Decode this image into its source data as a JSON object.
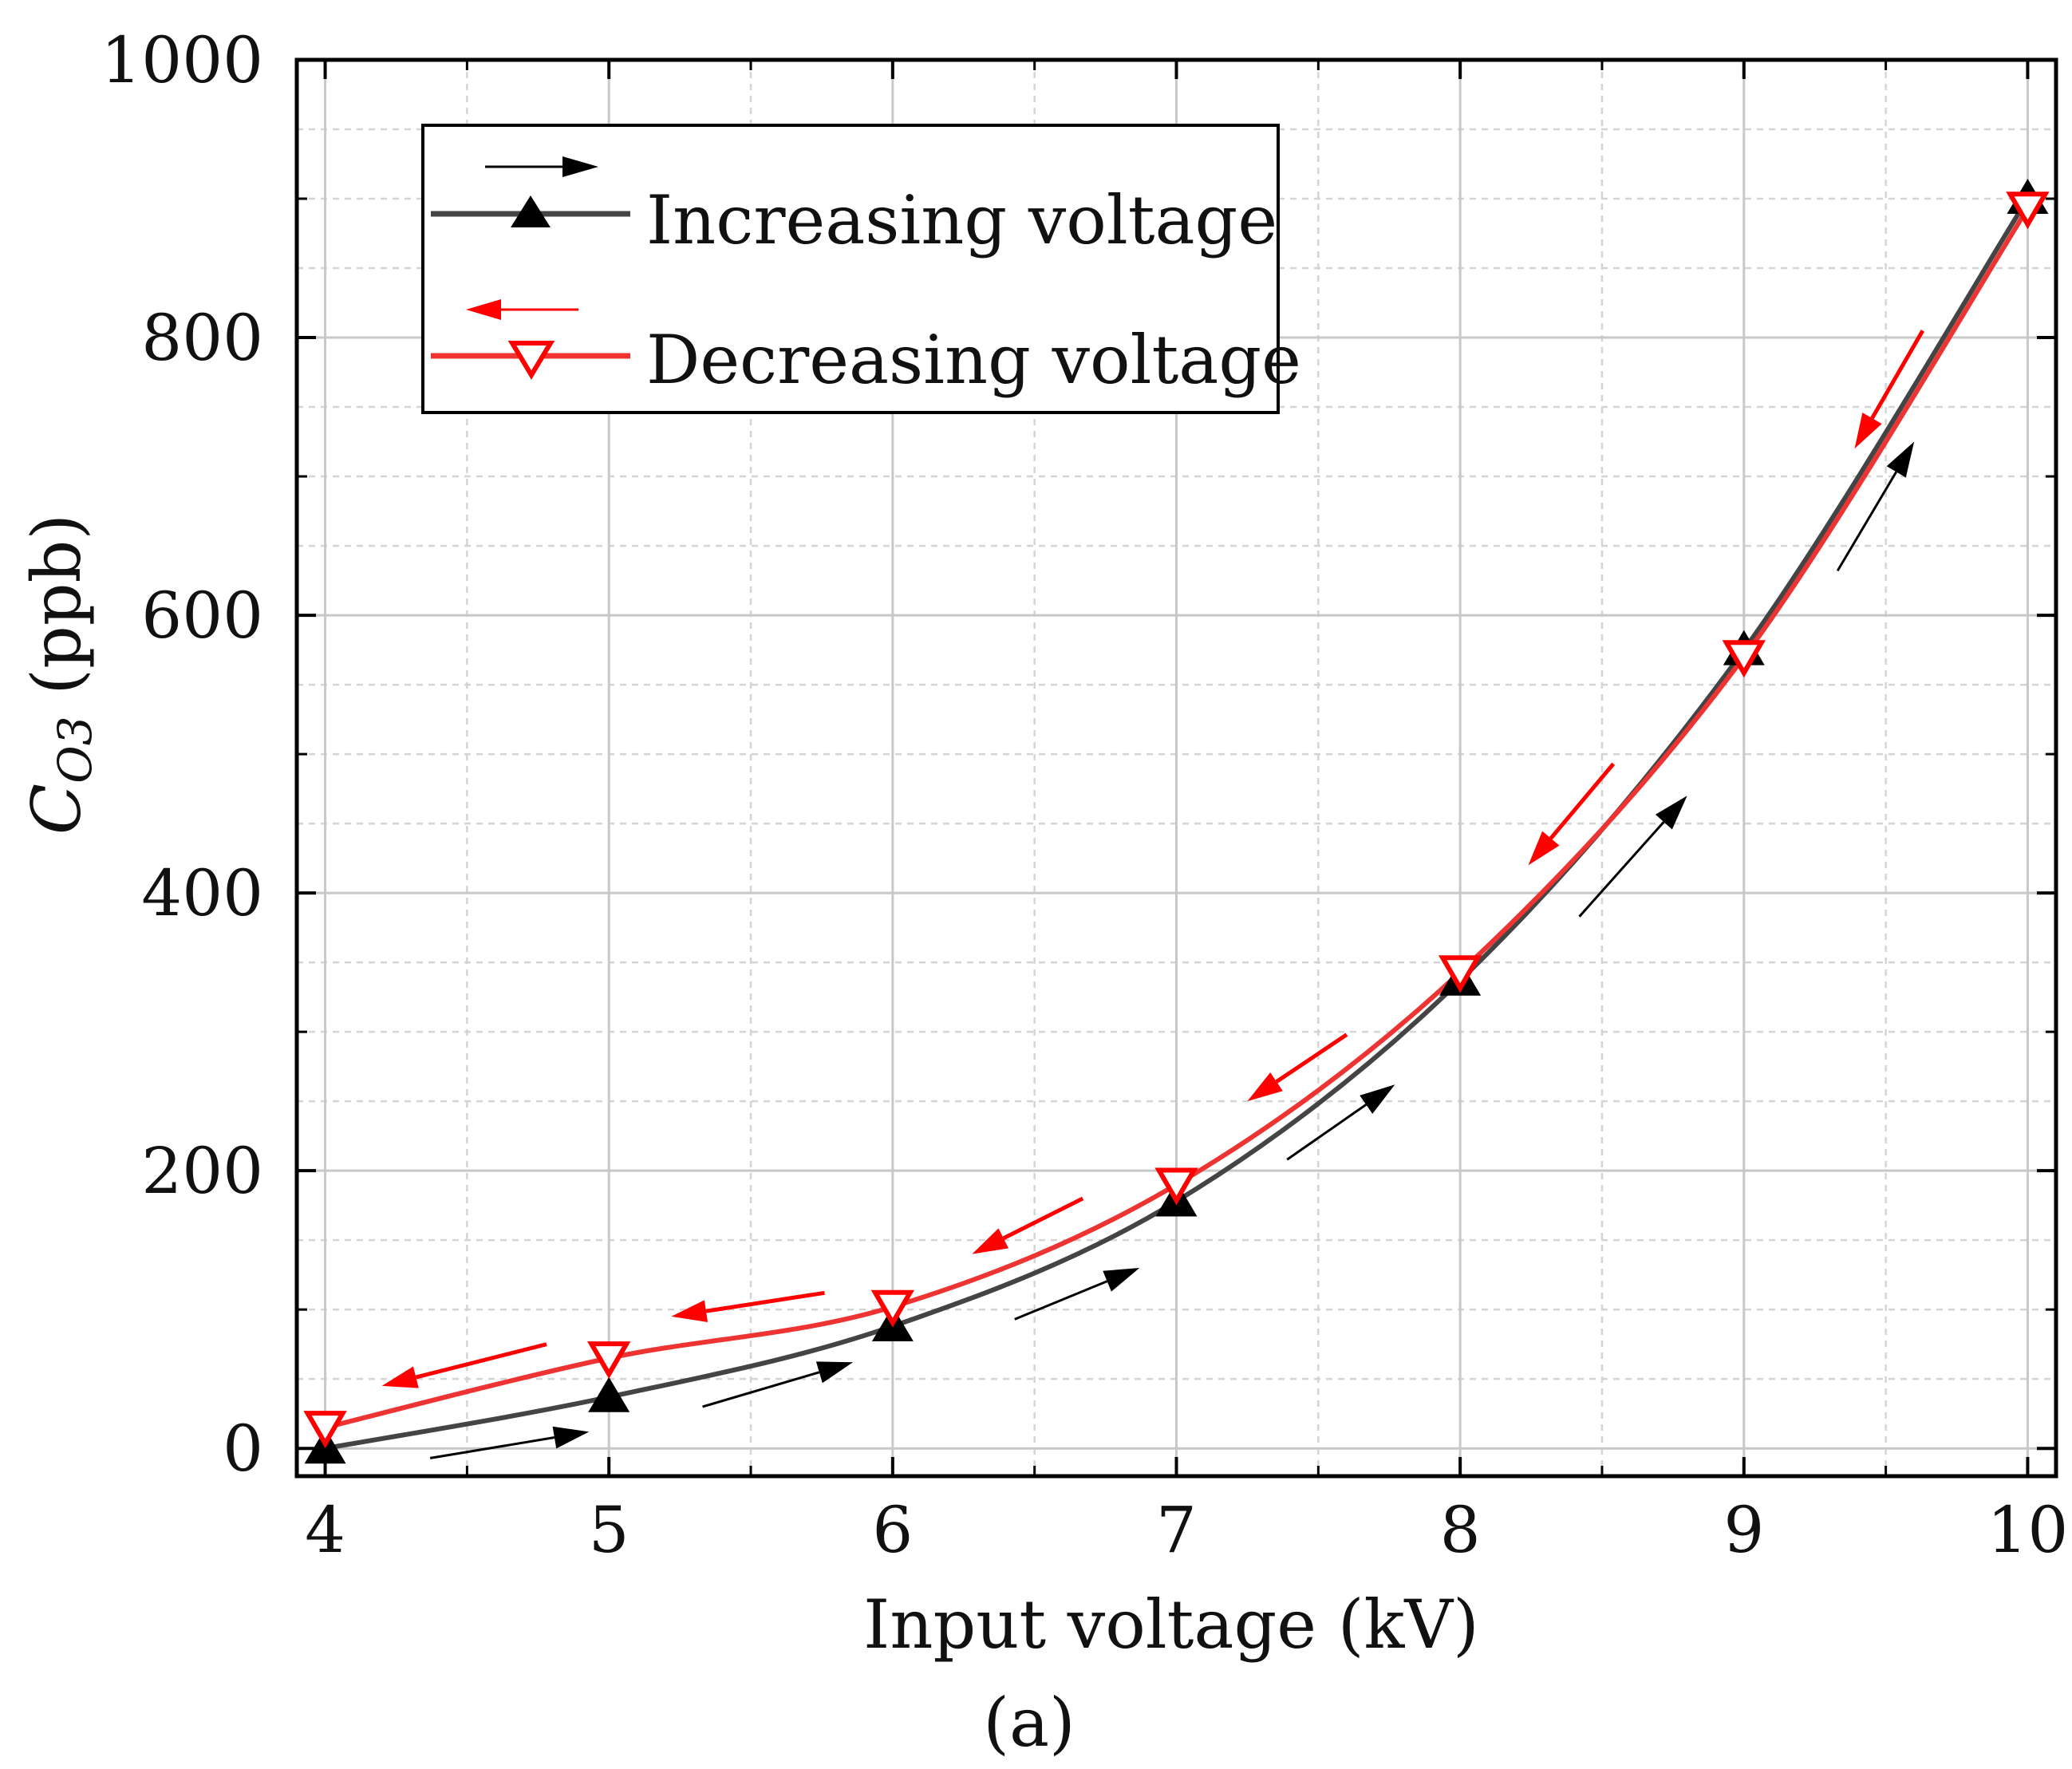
{
  "chart_data": {
    "type": "line",
    "title": "",
    "xlabel": "Input voltage (kV)",
    "ylabel_main": "C",
    "ylabel_sub": "O3",
    "ylabel_unit": " (ppb)",
    "xlim": [
      3.9,
      10.1
    ],
    "ylim": [
      -20,
      1000
    ],
    "xticks": [
      4,
      5,
      6,
      7,
      8,
      9,
      10
    ],
    "yticks": [
      0,
      200,
      400,
      600,
      800,
      1000
    ],
    "grid": true,
    "legend_position": "top-left",
    "caption": "(a)",
    "x": [
      4,
      5,
      6,
      7,
      8,
      9,
      10
    ],
    "series": [
      {
        "name": "Increasing voltage",
        "color": "#000000",
        "line_color": "#444444",
        "marker": "triangle-up",
        "values": [
          0,
          37,
          88,
          178,
          337,
          575,
          900
        ]
      },
      {
        "name": "Decreasing voltage",
        "color": "#ff0000",
        "line_color": "#ee3333",
        "marker": "triangle-down",
        "values": [
          15,
          65,
          102,
          190,
          343,
          570,
          893
        ]
      }
    ],
    "direction_arrows": {
      "increasing": [
        {
          "from": [
            4.37,
            -7
          ],
          "to": [
            4.93,
            12
          ]
        },
        {
          "from": [
            5.33,
            30
          ],
          "to": [
            5.86,
            62
          ]
        },
        {
          "from": [
            6.43,
            93
          ],
          "to": [
            6.87,
            130
          ]
        },
        {
          "from": [
            7.39,
            208
          ],
          "to": [
            7.77,
            262
          ]
        },
        {
          "from": [
            8.42,
            383
          ],
          "to": [
            8.8,
            470
          ]
        },
        {
          "from": [
            9.33,
            632
          ],
          "to": [
            9.6,
            725
          ]
        }
      ],
      "decreasing": [
        {
          "from": [
            4.78,
            75
          ],
          "to": [
            4.2,
            45
          ]
        },
        {
          "from": [
            5.76,
            112
          ],
          "to": [
            5.22,
            95
          ]
        },
        {
          "from": [
            6.67,
            180
          ],
          "to": [
            6.28,
            140
          ]
        },
        {
          "from": [
            7.6,
            298
          ],
          "to": [
            7.25,
            250
          ]
        },
        {
          "from": [
            8.54,
            493
          ],
          "to": [
            8.24,
            420
          ]
        },
        {
          "from": [
            9.63,
            805
          ],
          "to": [
            9.39,
            720
          ]
        }
      ]
    }
  }
}
